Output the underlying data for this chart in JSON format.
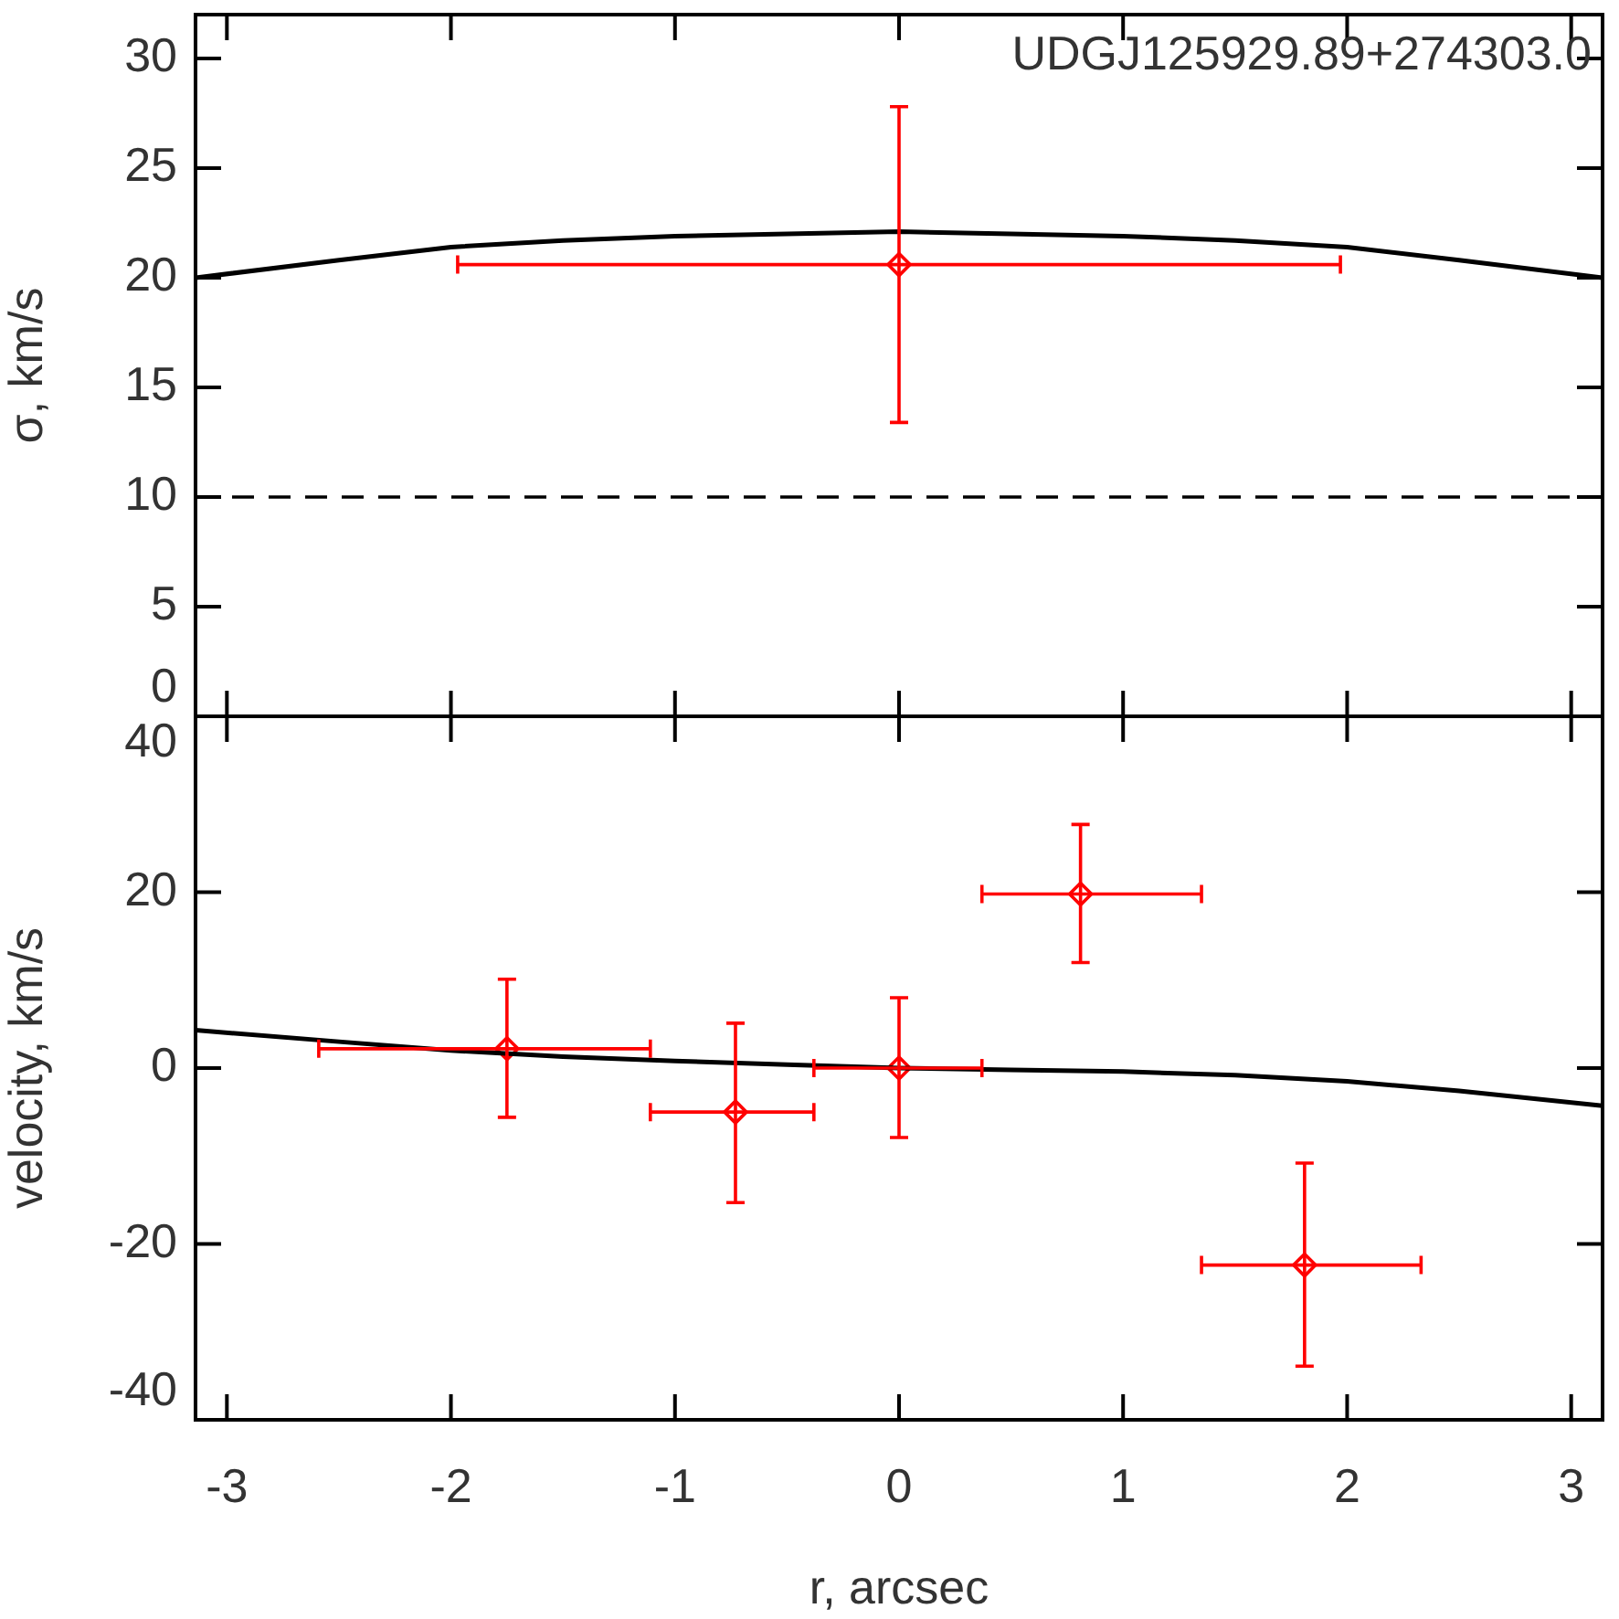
{
  "chart_data": [
    {
      "type": "scatter",
      "ylabel": "σ, km/s",
      "xlim": [
        -3.14,
        3.14
      ],
      "xticks": [
        -3,
        -2,
        -1,
        0,
        1,
        2,
        3
      ],
      "ylim": [
        0,
        32
      ],
      "yticks": [
        0,
        5,
        10,
        15,
        20,
        25,
        30
      ],
      "tick_labels": "y",
      "legend": false,
      "annotations": [
        "UDGJ125929.89+274303.0"
      ],
      "ref_lines": [
        {
          "axis": "y",
          "value": 10,
          "color": "#000000",
          "line_style": "dashed"
        }
      ],
      "series": [
        {
          "type": "line",
          "color": "#000000",
          "x": [
            -3.14,
            -2.5,
            -2,
            -1.5,
            -1,
            -0.5,
            0,
            0.5,
            1,
            1.5,
            2,
            2.5,
            3.14
          ],
          "values": [
            20.0,
            20.8,
            21.4,
            21.7,
            21.9,
            22.0,
            22.1,
            22.0,
            21.9,
            21.7,
            21.4,
            20.8,
            20.0
          ]
        },
        {
          "type": "scatter",
          "color": "#ff0000",
          "marker": "diamond",
          "x": [
            0
          ],
          "values": [
            20.6
          ],
          "errors": [
            [
              13.4,
              27.8
            ]
          ],
          "xerrors": [
            1.97
          ]
        }
      ]
    },
    {
      "type": "scatter",
      "xlabel": "r, arcsec",
      "ylabel": "velocity, km/s",
      "xlim": [
        -3.14,
        3.14
      ],
      "xticks": [
        -3,
        -2,
        -1,
        0,
        1,
        2,
        3
      ],
      "ylim": [
        -40,
        40
      ],
      "yticks": [
        -40,
        -20,
        0,
        20,
        40
      ],
      "legend": false,
      "series": [
        {
          "type": "line",
          "color": "#000000",
          "x": [
            -3.14,
            -2.5,
            -2,
            -1.5,
            -1,
            -0.5,
            0,
            0.5,
            1,
            1.5,
            2,
            2.5,
            3.14
          ],
          "values": [
            4.3,
            3.0,
            2.0,
            1.3,
            0.8,
            0.4,
            0,
            -0.2,
            -0.4,
            -0.8,
            -1.5,
            -2.6,
            -4.3
          ]
        },
        {
          "type": "scatter",
          "color": "#ff0000",
          "marker": "diamond",
          "x": [
            -1.75,
            -0.73,
            0,
            0.81,
            1.81
          ],
          "values": [
            2.2,
            -5.0,
            0,
            19.8,
            -22.4
          ],
          "errors": [
            [
              -5.6,
              10.1
            ],
            [
              -15.3,
              5.1
            ],
            [
              -7.9,
              8.0
            ],
            [
              12.0,
              27.7
            ],
            [
              -33.9,
              -10.8
            ]
          ],
          "xerrors": [
            [
              -2.59,
              -1.11
            ],
            [
              -1.11,
              -0.38
            ],
            [
              -0.38,
              0.37
            ],
            [
              0.37,
              1.35
            ],
            [
              1.35,
              2.33
            ]
          ]
        }
      ]
    }
  ]
}
